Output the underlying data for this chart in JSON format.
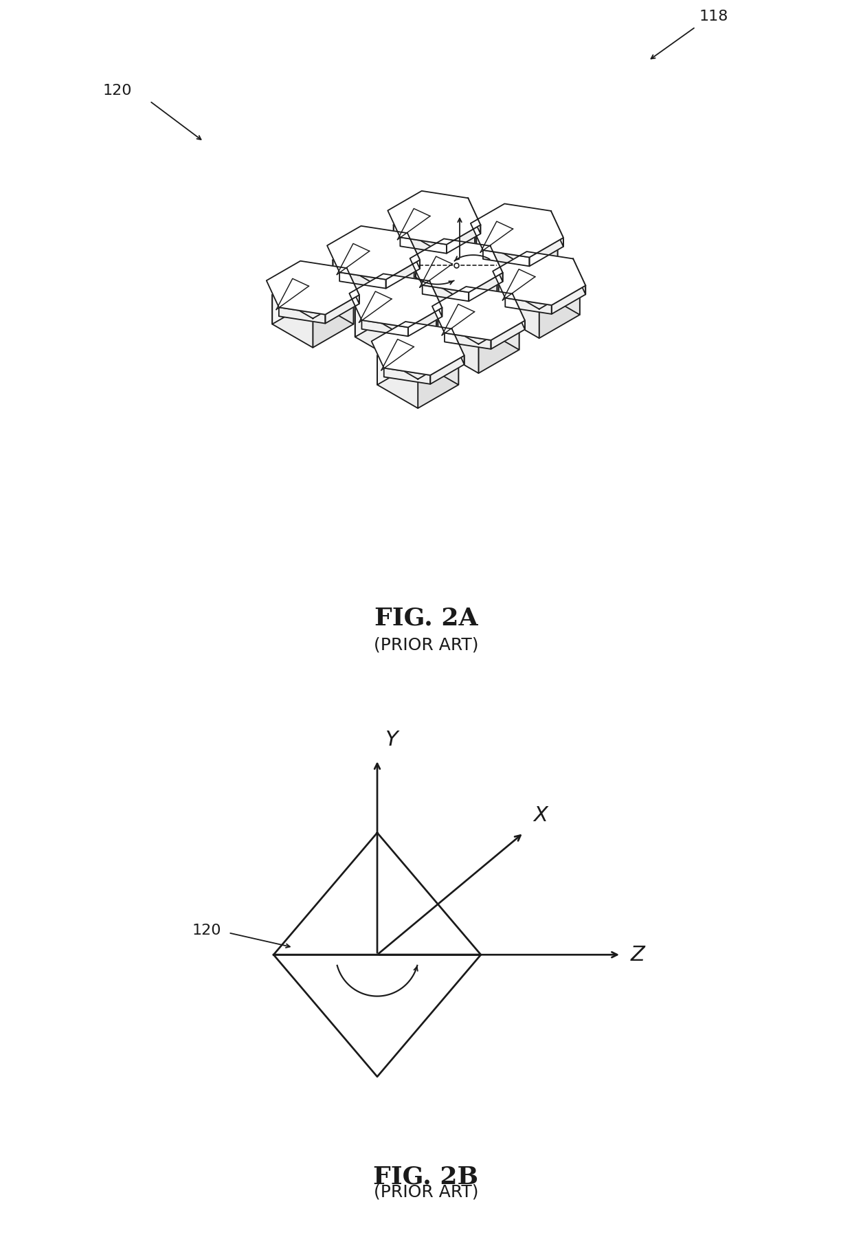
{
  "fig2a_title": "FIG. 2A",
  "fig2b_title": "FIG. 2B",
  "prior_art": "(PRIOR ART)",
  "label_118": "118",
  "label_120": "120",
  "bg_color": "#ffffff",
  "line_color": "#1a1a1a",
  "line_width": 1.3,
  "font_size_title": 26,
  "font_size_label": 18,
  "font_size_refnum": 16,
  "iso_sx": 0.6,
  "iso_sy": 0.6,
  "iso_ox": 5.0,
  "iso_oy": 5.8
}
